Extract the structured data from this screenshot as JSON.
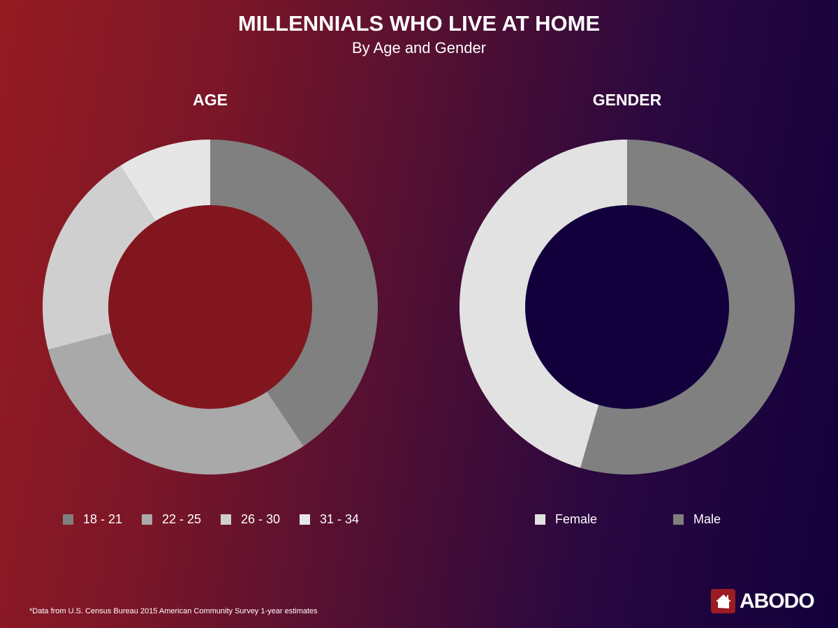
{
  "title": "MILLENNIALS WHO LIVE AT HOME",
  "subtitle": "By Age and Gender",
  "footnote": "*Data from U.S. Census Bureau 2015 American Community Survey 1-year estimates",
  "logo": "ABODO",
  "chart_data": [
    {
      "type": "pie",
      "donut": true,
      "title": "AGE",
      "categories": [
        "18 - 21",
        "22 - 25",
        "26 - 30",
        "31 - 34"
      ],
      "values": [
        40.6,
        30.3,
        20.1,
        9.0
      ],
      "colors": [
        "#808080",
        "#a9a9a9",
        "#cfcfcf",
        "#e6e6e6"
      ],
      "hole_color": "#82161f",
      "legend": "bottom"
    },
    {
      "type": "pie",
      "donut": true,
      "title": "GENDER",
      "categories": [
        "Male",
        "Female"
      ],
      "values": [
        54.5,
        45.5
      ],
      "colors": [
        "#808080",
        "#e2e2e2"
      ],
      "legend_order": [
        "Female",
        "Male"
      ],
      "hole_color": "#12003d",
      "legend": "bottom"
    }
  ]
}
